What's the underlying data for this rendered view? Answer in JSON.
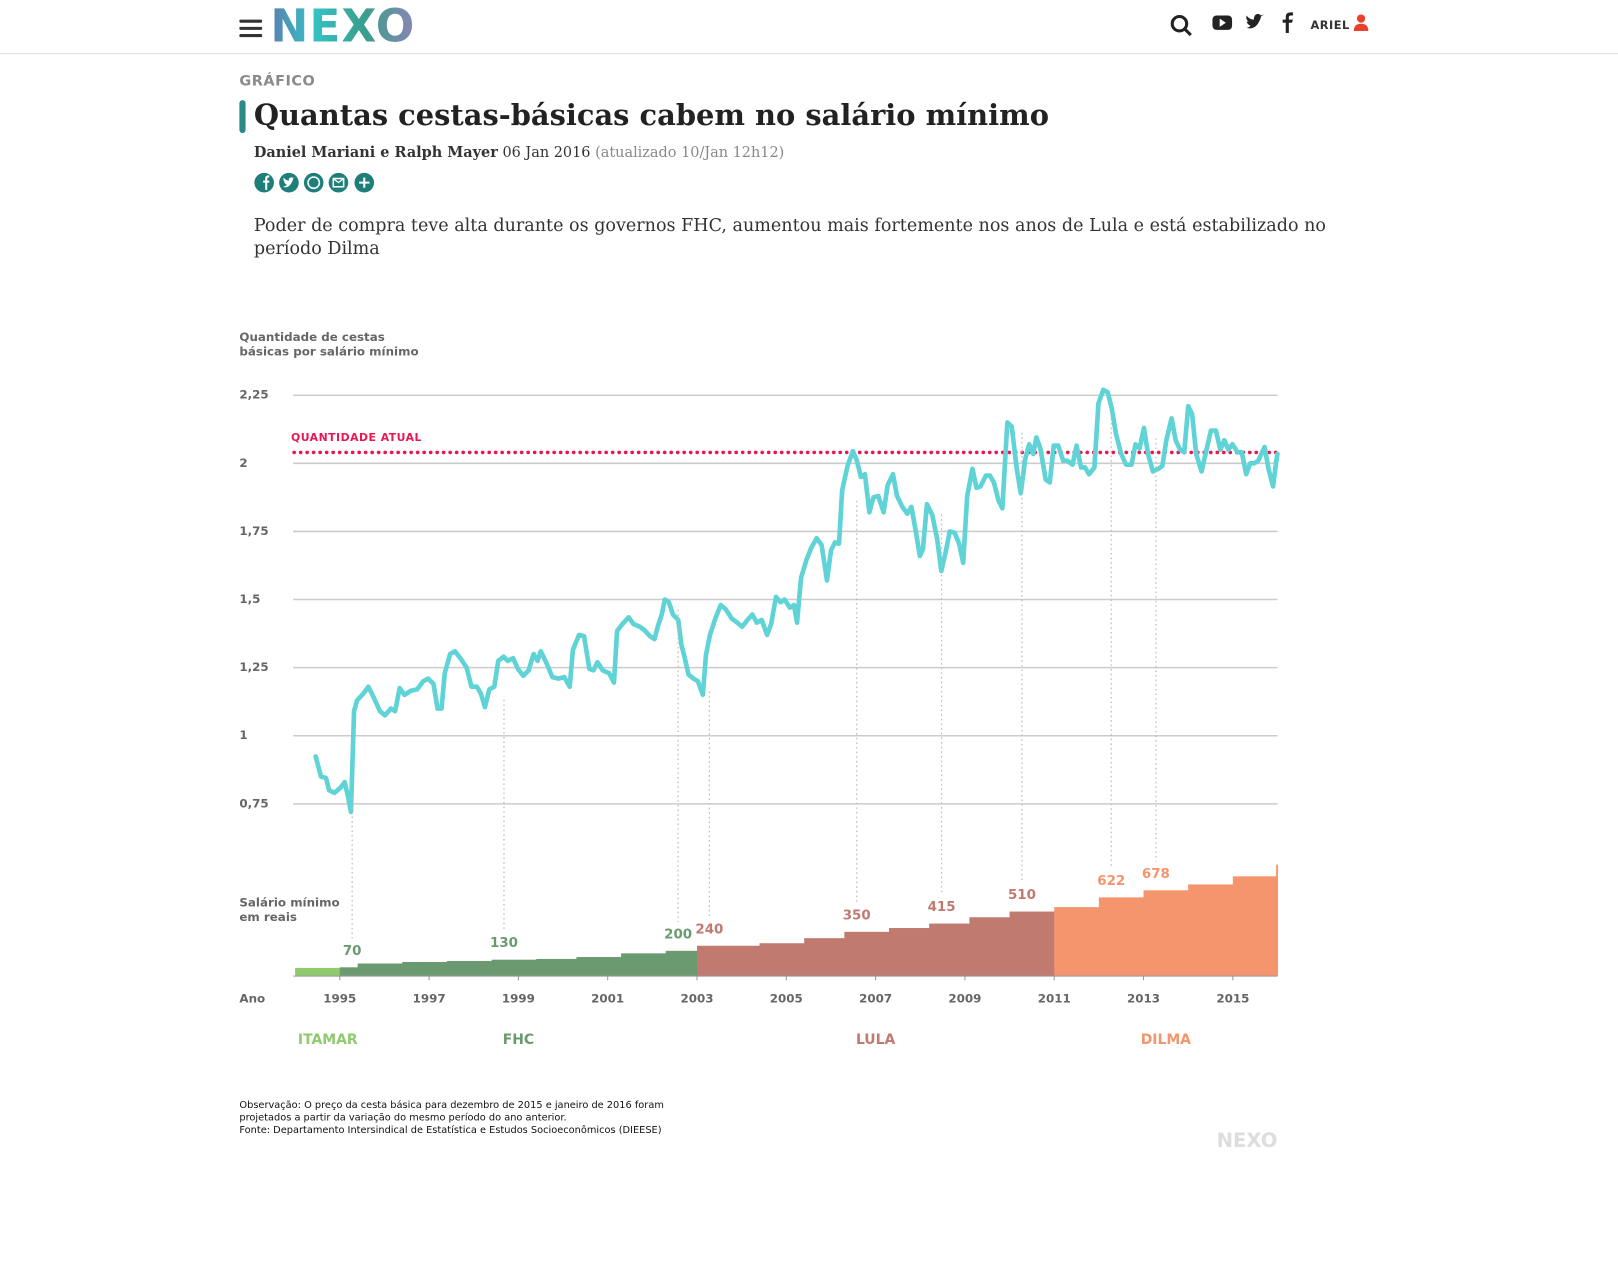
{
  "header": {
    "logo": "NEXO",
    "user": "ARIEL"
  },
  "article": {
    "kicker": "GRÁFICO",
    "title": "Quantas cestas-básicas cabem no salário mínimo",
    "authors": "Daniel Mariani e Ralph Mayer",
    "date": "06 Jan 2016",
    "updated": "(atualizado 10/Jan 12h12)",
    "summary": "Poder de compra teve alta durante os governos FHC, aumentou mais fortemente nos anos de Lula e está estabilizado no período Dilma"
  },
  "chart_data": [
    {
      "type": "line",
      "ylabel": [
        "Quantidade de cestas",
        "básicas por salário mínimo"
      ],
      "color": "#5fd3d5",
      "xlim": [
        1994,
        2016
      ],
      "ylim": [
        0.7,
        2.3
      ],
      "grid": true,
      "yticks": [
        {
          "value": 0.75,
          "label": "0,75"
        },
        1,
        {
          "value": 1.25,
          "label": "1,25"
        },
        {
          "value": 1.5,
          "label": "1,5"
        },
        {
          "value": 1.75,
          "label": "1,75"
        },
        2,
        {
          "value": 2.25,
          "label": "2,25"
        }
      ],
      "reference": {
        "label": "QUANTIDADE ATUAL",
        "value": 2.04,
        "color": "#e8174f"
      },
      "x": [
        1994.46,
        1994.58,
        1994.69,
        1994.76,
        1994.88,
        1995.02,
        1995.11,
        1995.18,
        1995.25,
        1995.32,
        1995.39,
        1995.53,
        1995.64,
        1995.76,
        1995.9,
        1996.01,
        1996.15,
        1996.24,
        1996.34,
        1996.45,
        1996.59,
        1996.73,
        1996.87,
        1996.98,
        1997.1,
        1997.19,
        1997.28,
        1997.35,
        1997.47,
        1997.58,
        1997.7,
        1997.84,
        1997.95,
        1998.07,
        1998.16,
        1998.25,
        1998.35,
        1998.46,
        1998.55,
        1998.67,
        1998.76,
        1998.88,
        1998.99,
        1999.11,
        1999.23,
        1999.34,
        1999.43,
        1999.5,
        1999.62,
        1999.76,
        1999.9,
        2000.03,
        2000.15,
        2000.22,
        2000.36,
        2000.47,
        2000.59,
        2000.68,
        2000.77,
        2000.89,
        2001.03,
        2001.14,
        2001.21,
        2001.33,
        2001.47,
        2001.58,
        2001.72,
        2001.84,
        2001.95,
        2002.05,
        2002.12,
        2002.21,
        2002.28,
        2002.37,
        2002.46,
        2002.58,
        2002.65,
        2002.72,
        2002.81,
        2002.92,
        2003.02,
        2003.13,
        2003.2,
        2003.29,
        2003.41,
        2003.53,
        2003.64,
        2003.78,
        2003.9,
        2004.01,
        2004.13,
        2004.24,
        2004.34,
        2004.45,
        2004.57,
        2004.66,
        2004.77,
        2004.87,
        2004.96,
        2005.08,
        2005.17,
        2005.24,
        2005.33,
        2005.45,
        2005.56,
        2005.68,
        2005.79,
        2005.91,
        2006.0,
        2006.09,
        2006.18,
        2006.25,
        2006.37,
        2006.49,
        2006.58,
        2006.67,
        2006.76,
        2006.86,
        2006.95,
        2007.06,
        2007.18,
        2007.27,
        2007.39,
        2007.48,
        2007.6,
        2007.71,
        2007.8,
        2007.9,
        2007.99,
        2008.06,
        2008.15,
        2008.27,
        2008.38,
        2008.47,
        2008.57,
        2008.66,
        2008.77,
        2008.87,
        2008.96,
        2009.05,
        2009.17,
        2009.26,
        2009.35,
        2009.47,
        2009.56,
        2009.65,
        2009.75,
        2009.84,
        2009.95,
        2010.05,
        2010.16,
        2010.25,
        2010.35,
        2010.44,
        2010.53,
        2010.6,
        2010.69,
        2010.81,
        2010.9,
        2010.99,
        2011.09,
        2011.2,
        2011.29,
        2011.41,
        2011.5,
        2011.6,
        2011.69,
        2011.78,
        2011.9,
        2011.99,
        2012.1,
        2012.2,
        2012.29,
        2012.38,
        2012.5,
        2012.61,
        2012.73,
        2012.82,
        2012.91,
        2013.01,
        2013.1,
        2013.21,
        2013.33,
        2013.42,
        2013.51,
        2013.63,
        2013.72,
        2013.82,
        2013.91,
        2014.0,
        2014.09,
        2014.18,
        2014.3,
        2014.39,
        2014.51,
        2014.62,
        2014.72,
        2014.81,
        2014.9,
        2014.99,
        2015.11,
        2015.2,
        2015.3,
        2015.39,
        2015.48,
        2015.57,
        2015.71,
        2015.8,
        2015.9,
        2015.97,
        2016.0
      ],
      "values": [
        0.924,
        0.85,
        0.845,
        0.8,
        0.79,
        0.81,
        0.83,
        0.78,
        0.72,
        1.09,
        1.13,
        1.155,
        1.18,
        1.14,
        1.09,
        1.075,
        1.1,
        1.09,
        1.175,
        1.15,
        1.165,
        1.17,
        1.2,
        1.21,
        1.19,
        1.1,
        1.1,
        1.23,
        1.3,
        1.31,
        1.285,
        1.25,
        1.18,
        1.18,
        1.155,
        1.105,
        1.17,
        1.18,
        1.275,
        1.29,
        1.275,
        1.285,
        1.245,
        1.22,
        1.24,
        1.3,
        1.275,
        1.31,
        1.27,
        1.215,
        1.21,
        1.215,
        1.18,
        1.315,
        1.37,
        1.365,
        1.245,
        1.24,
        1.27,
        1.24,
        1.23,
        1.195,
        1.385,
        1.41,
        1.435,
        1.41,
        1.4,
        1.385,
        1.365,
        1.355,
        1.4,
        1.445,
        1.5,
        1.49,
        1.445,
        1.425,
        1.335,
        1.29,
        1.225,
        1.21,
        1.2,
        1.15,
        1.295,
        1.37,
        1.43,
        1.48,
        1.465,
        1.43,
        1.415,
        1.4,
        1.425,
        1.445,
        1.415,
        1.425,
        1.37,
        1.41,
        1.51,
        1.49,
        1.5,
        1.47,
        1.48,
        1.415,
        1.58,
        1.645,
        1.69,
        1.725,
        1.7,
        1.57,
        1.68,
        1.71,
        1.705,
        1.9,
        1.99,
        2.045,
        2.01,
        1.95,
        1.96,
        1.82,
        1.875,
        1.88,
        1.82,
        1.92,
        1.96,
        1.88,
        1.84,
        1.815,
        1.84,
        1.75,
        1.66,
        1.685,
        1.85,
        1.81,
        1.72,
        1.605,
        1.675,
        1.75,
        1.745,
        1.705,
        1.635,
        1.88,
        1.98,
        1.91,
        1.915,
        1.955,
        1.955,
        1.93,
        1.865,
        1.835,
        2.15,
        2.135,
        1.98,
        1.89,
        2.015,
        2.07,
        2.035,
        2.095,
        2.055,
        1.94,
        1.93,
        2.065,
        2.065,
        2.01,
        2.01,
        1.995,
        2.065,
        1.985,
        1.985,
        1.96,
        1.985,
        2.22,
        2.27,
        2.26,
        2.2,
        2.11,
        2.035,
        1.995,
        1.995,
        2.07,
        2.055,
        2.13,
        2.035,
        1.97,
        1.98,
        1.99,
        2.085,
        2.165,
        2.085,
        2.05,
        2.04,
        2.21,
        2.18,
        2.035,
        1.97,
        2.035,
        2.12,
        2.12,
        2.05,
        2.085,
        2.05,
        2.07,
        2.04,
        2.04,
        1.96,
        2.0,
        2.0,
        2.01,
        2.06,
        1.98,
        1.915,
        2.005,
        2.035
      ]
    },
    {
      "type": "step",
      "ylabel": [
        "Salário mínimo",
        "em reais"
      ],
      "xlabel": "Ano",
      "xlim": [
        1994,
        2016
      ],
      "ylim": [
        0,
        900
      ],
      "xticks": [
        1995,
        1997,
        1999,
        2001,
        2003,
        2005,
        2007,
        2009,
        2011,
        2013,
        2015
      ],
      "x": [
        1994,
        1995,
        1995.4,
        1996.4,
        1997.4,
        1998.4,
        1999.4,
        2000.3,
        2001.3,
        2002.3,
        2003,
        2004.4,
        2005.4,
        2006.3,
        2007.3,
        2008.2,
        2009.1,
        2010,
        2011,
        2012,
        2013,
        2014,
        2015,
        2015.97
      ],
      "values": [
        65,
        70,
        100,
        112,
        120,
        130,
        136,
        151,
        180,
        200,
        240,
        260,
        300,
        350,
        380,
        415,
        465,
        510,
        545,
        622,
        678,
        724,
        788,
        880
      ],
      "show_labels": [
        false,
        true,
        false,
        false,
        false,
        true,
        false,
        false,
        false,
        true,
        true,
        false,
        false,
        true,
        false,
        true,
        false,
        true,
        false,
        true,
        true,
        false,
        false,
        false
      ],
      "periods": [
        {
          "name": "ITAMAR",
          "start": 1994,
          "color": "#8fca6f"
        },
        {
          "name": "FHC",
          "start": 1995,
          "color": "#6b9a70"
        },
        {
          "name": "LULA",
          "start": 2003,
          "color": "#c07a70"
        },
        {
          "name": "DILMA",
          "start": 2011,
          "color": "#f4956e"
        }
      ]
    }
  ],
  "notes": [
    "Observação: O preço da cesta básica para dezembro de 2015 e janeiro de 2016 foram",
    "projetados a partir da variação do mesmo período do ano anterior.",
    "Fonte: Departamento Intersindical de Estatística e Estudos Socioeconômicos (DIEESE)"
  ],
  "watermark": "NEXO"
}
